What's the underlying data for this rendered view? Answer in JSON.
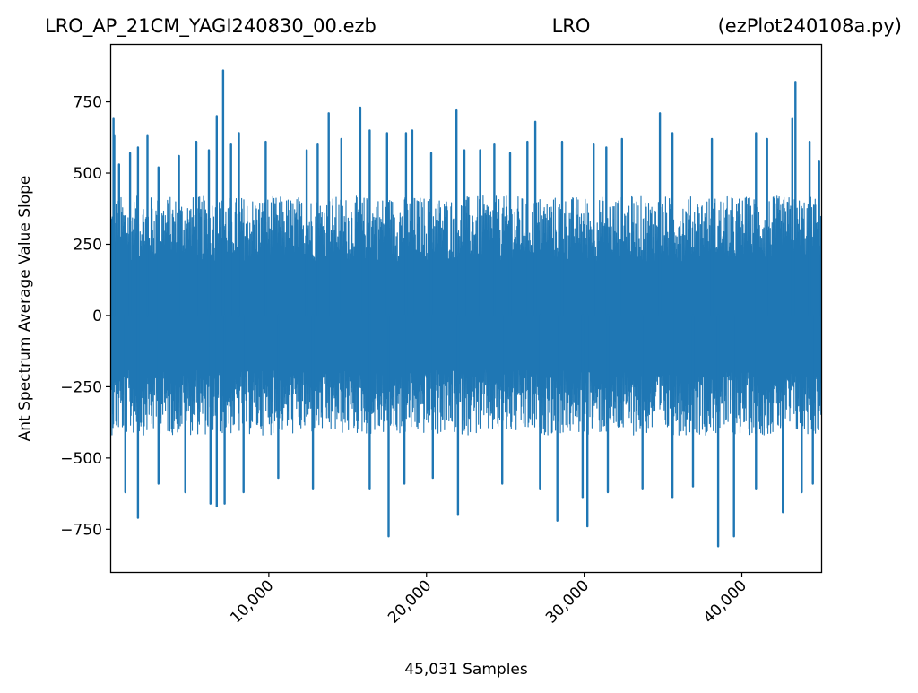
{
  "chart_data": {
    "type": "line",
    "title_left": "LRO_AP_21CM_YAGI240830_00.ezb",
    "title_center": "LRO",
    "title_right": "(ezPlot240108a.py)",
    "xlabel": "45,031 Samples",
    "ylabel": "Ant Spectrum Average Value Slope",
    "xlim": [
      0,
      45031
    ],
    "ylim": [
      -900,
      950
    ],
    "x_ticks": [
      10000,
      20000,
      30000,
      40000
    ],
    "x_tick_labels": [
      "10,000",
      "20,000",
      "30,000",
      "40,000"
    ],
    "y_ticks": [
      -750,
      -500,
      -250,
      0,
      250,
      500,
      750
    ],
    "y_tick_labels": [
      "−750",
      "−500",
      "−250",
      "0",
      "250",
      "500",
      "750"
    ],
    "grid": false,
    "line_color": "#1f77b4",
    "series": [
      {
        "n_samples": 45031,
        "typical_range": [
          -420,
          420
        ],
        "spikes": [
          {
            "x": 150,
            "y": 690
          },
          {
            "x": 200,
            "y": 630
          },
          {
            "x": 500,
            "y": 530
          },
          {
            "x": 1200,
            "y": 570
          },
          {
            "x": 1700,
            "y": 590
          },
          {
            "x": 2300,
            "y": 630
          },
          {
            "x": 3000,
            "y": 520
          },
          {
            "x": 4300,
            "y": 560
          },
          {
            "x": 5400,
            "y": 610
          },
          {
            "x": 6200,
            "y": 580
          },
          {
            "x": 6700,
            "y": 700
          },
          {
            "x": 7100,
            "y": 860
          },
          {
            "x": 7600,
            "y": 600
          },
          {
            "x": 8100,
            "y": 640
          },
          {
            "x": 9800,
            "y": 610
          },
          {
            "x": 12400,
            "y": 580
          },
          {
            "x": 13100,
            "y": 600
          },
          {
            "x": 13800,
            "y": 710
          },
          {
            "x": 14600,
            "y": 620
          },
          {
            "x": 15800,
            "y": 730
          },
          {
            "x": 16400,
            "y": 650
          },
          {
            "x": 17500,
            "y": 640
          },
          {
            "x": 18700,
            "y": 640
          },
          {
            "x": 19100,
            "y": 650
          },
          {
            "x": 20300,
            "y": 570
          },
          {
            "x": 21900,
            "y": 720
          },
          {
            "x": 22400,
            "y": 580
          },
          {
            "x": 23400,
            "y": 580
          },
          {
            "x": 24300,
            "y": 600
          },
          {
            "x": 25300,
            "y": 570
          },
          {
            "x": 26400,
            "y": 610
          },
          {
            "x": 26900,
            "y": 680
          },
          {
            "x": 28600,
            "y": 610
          },
          {
            "x": 30600,
            "y": 600
          },
          {
            "x": 31400,
            "y": 590
          },
          {
            "x": 32400,
            "y": 620
          },
          {
            "x": 34800,
            "y": 710
          },
          {
            "x": 35600,
            "y": 640
          },
          {
            "x": 38100,
            "y": 620
          },
          {
            "x": 40900,
            "y": 640
          },
          {
            "x": 41600,
            "y": 620
          },
          {
            "x": 43200,
            "y": 690
          },
          {
            "x": 43400,
            "y": 820
          },
          {
            "x": 44300,
            "y": 610
          },
          {
            "x": 44900,
            "y": 540
          },
          {
            "x": 900,
            "y": -620
          },
          {
            "x": 1700,
            "y": -710
          },
          {
            "x": 3000,
            "y": -590
          },
          {
            "x": 4700,
            "y": -620
          },
          {
            "x": 6300,
            "y": -660
          },
          {
            "x": 6700,
            "y": -670
          },
          {
            "x": 7200,
            "y": -660
          },
          {
            "x": 8400,
            "y": -620
          },
          {
            "x": 10600,
            "y": -570
          },
          {
            "x": 12800,
            "y": -610
          },
          {
            "x": 16400,
            "y": -610
          },
          {
            "x": 17600,
            "y": -775
          },
          {
            "x": 18600,
            "y": -590
          },
          {
            "x": 20400,
            "y": -570
          },
          {
            "x": 22000,
            "y": -700
          },
          {
            "x": 24800,
            "y": -590
          },
          {
            "x": 27200,
            "y": -610
          },
          {
            "x": 28300,
            "y": -720
          },
          {
            "x": 29900,
            "y": -640
          },
          {
            "x": 30200,
            "y": -740
          },
          {
            "x": 31500,
            "y": -620
          },
          {
            "x": 33700,
            "y": -610
          },
          {
            "x": 35600,
            "y": -640
          },
          {
            "x": 36900,
            "y": -600
          },
          {
            "x": 38500,
            "y": -810
          },
          {
            "x": 39500,
            "y": -775
          },
          {
            "x": 40900,
            "y": -610
          },
          {
            "x": 42600,
            "y": -690
          },
          {
            "x": 43800,
            "y": -620
          },
          {
            "x": 44500,
            "y": -590
          }
        ]
      }
    ]
  }
}
